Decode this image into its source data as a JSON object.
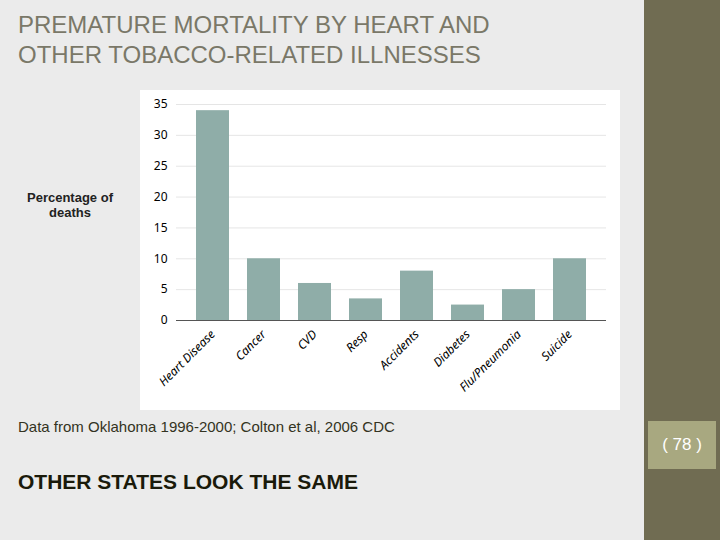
{
  "chart_data": {
    "type": "bar",
    "title": "PREMATURE MORTALITY BY HEART AND\nOTHER TOBACCO-RELATED ILLNESSES",
    "ylabel": "Percentage of\ndeaths",
    "categories": [
      "Heart Disease",
      "Cancer",
      "CVD",
      "Resp",
      "Accidents",
      "Diabetes",
      "Flu/Pneumonia",
      "Suicide"
    ],
    "values": [
      34,
      10,
      6,
      3.5,
      8,
      2.5,
      5,
      10
    ],
    "color": "#8fada8",
    "ylim": [
      0,
      35
    ],
    "yticks": [
      0,
      5,
      10,
      15,
      20,
      25,
      30,
      35
    ],
    "grid": true,
    "annotations": [
      "Data from Oklahoma 1996-2000; Colton et al, 2006 CDC",
      "OTHER STATES LOOK THE SAME",
      "( 78 )"
    ]
  }
}
